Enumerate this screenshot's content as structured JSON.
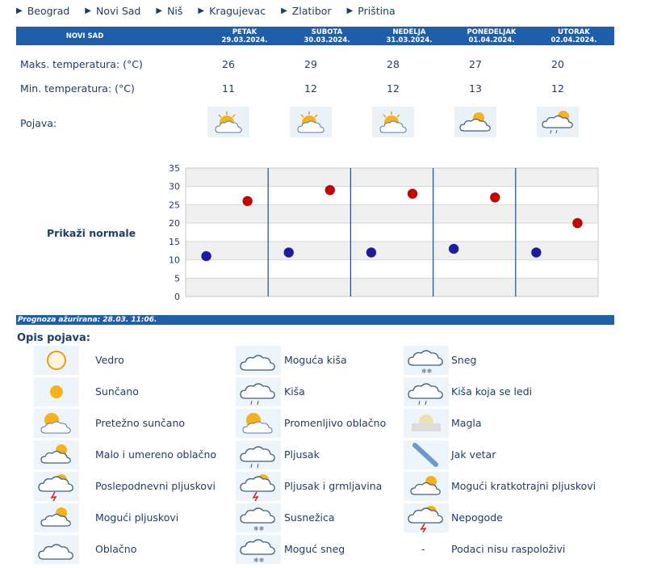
{
  "nav": [
    {
      "label": "Beograd"
    },
    {
      "label": "Novi Sad"
    },
    {
      "label": "Niš"
    },
    {
      "label": "Kragujevac"
    },
    {
      "label": "Zlatibor"
    },
    {
      "label": "Priština"
    }
  ],
  "table": {
    "city": "NOVI SAD",
    "days": [
      {
        "name": "PETAK",
        "date": "29.03.2024.",
        "max": "26",
        "min": "11",
        "icon": "pretezno-suncano-icon"
      },
      {
        "name": "SUBOTA",
        "date": "30.03.2024.",
        "max": "29",
        "min": "12",
        "icon": "pretezno-suncano-icon"
      },
      {
        "name": "NEDELJA",
        "date": "31.03.2024.",
        "max": "28",
        "min": "12",
        "icon": "pretezno-suncano-icon"
      },
      {
        "name": "PONEDELJAK",
        "date": "01.04.2024.",
        "max": "27",
        "min": "13",
        "icon": "malo-oblacno-icon"
      },
      {
        "name": "UTORAK",
        "date": "02.04.2024.",
        "max": "20",
        "min": "12",
        "icon": "moguci-pljuskovi-icon"
      }
    ],
    "max_label": "Maks. temperatura: (°C)",
    "min_label": "Min. temperatura: (°C)",
    "pojava_label": "Pojava:"
  },
  "normale_label": "Prikaži normale",
  "chart_data": {
    "type": "scatter",
    "ylim": [
      0,
      35
    ],
    "yticks": [
      "0",
      "5",
      "10",
      "15",
      "20",
      "25",
      "30",
      "35"
    ],
    "series": [
      {
        "values": [
          26,
          29,
          28,
          27,
          20
        ],
        "color": "#cc0000"
      },
      {
        "values": [
          11,
          12,
          12,
          13,
          12
        ],
        "color": "#1a1aa6"
      }
    ]
  },
  "updated": "Prognoza ažurirana:  28.03. 11:06.",
  "opis_title": "Opis pojava:",
  "legend": [
    {
      "label": "Vedro",
      "icon": "vedro-icon"
    },
    {
      "label": "Sunčano",
      "icon": "suncano-icon"
    },
    {
      "label": "Pretežno sunčano",
      "icon": "pretezno-suncano-icon"
    },
    {
      "label": "Malo i umereno oblačno",
      "icon": "malo-oblacno-icon"
    },
    {
      "label": "Poslepodnevni pljuskovi",
      "icon": "poslepodnevni-pljuskovi-icon"
    },
    {
      "label": "Mogući pljuskovi",
      "icon": "moguci-pljuskovi-icon"
    },
    {
      "label": "Oblačno",
      "icon": "oblacno-icon"
    },
    {
      "label": "Moguća kiša",
      "icon": "moguca-kisa-icon"
    },
    {
      "label": "Kiša",
      "icon": "kisa-icon"
    },
    {
      "label": "Promenljivo oblačno",
      "icon": "promenljivo-oblacno-icon"
    },
    {
      "label": "Pljusak",
      "icon": "pljusak-icon"
    },
    {
      "label": "Pljusak i grmljavina",
      "icon": "pljusak-grmljavina-icon"
    },
    {
      "label": "Susnežica",
      "icon": "susnezica-icon"
    },
    {
      "label": "Moguć sneg",
      "icon": "moguc-sneg-icon"
    },
    {
      "label": "Sneg",
      "icon": "sneg-icon"
    },
    {
      "label": "Kiša koja se ledi",
      "icon": "kisa-ledi-icon"
    },
    {
      "label": "Magla",
      "icon": "magla-icon"
    },
    {
      "label": "Jak vetar",
      "icon": "jak-vetar-icon"
    },
    {
      "label": "Mogući kratkotrajni pljuskovi",
      "icon": "kratkotrajni-pljuskovi-icon"
    },
    {
      "label": "Nepogode",
      "icon": "nepogode-icon"
    },
    {
      "label": "Podaci nisu raspoloživi",
      "icon": "",
      "dash": "-"
    }
  ]
}
